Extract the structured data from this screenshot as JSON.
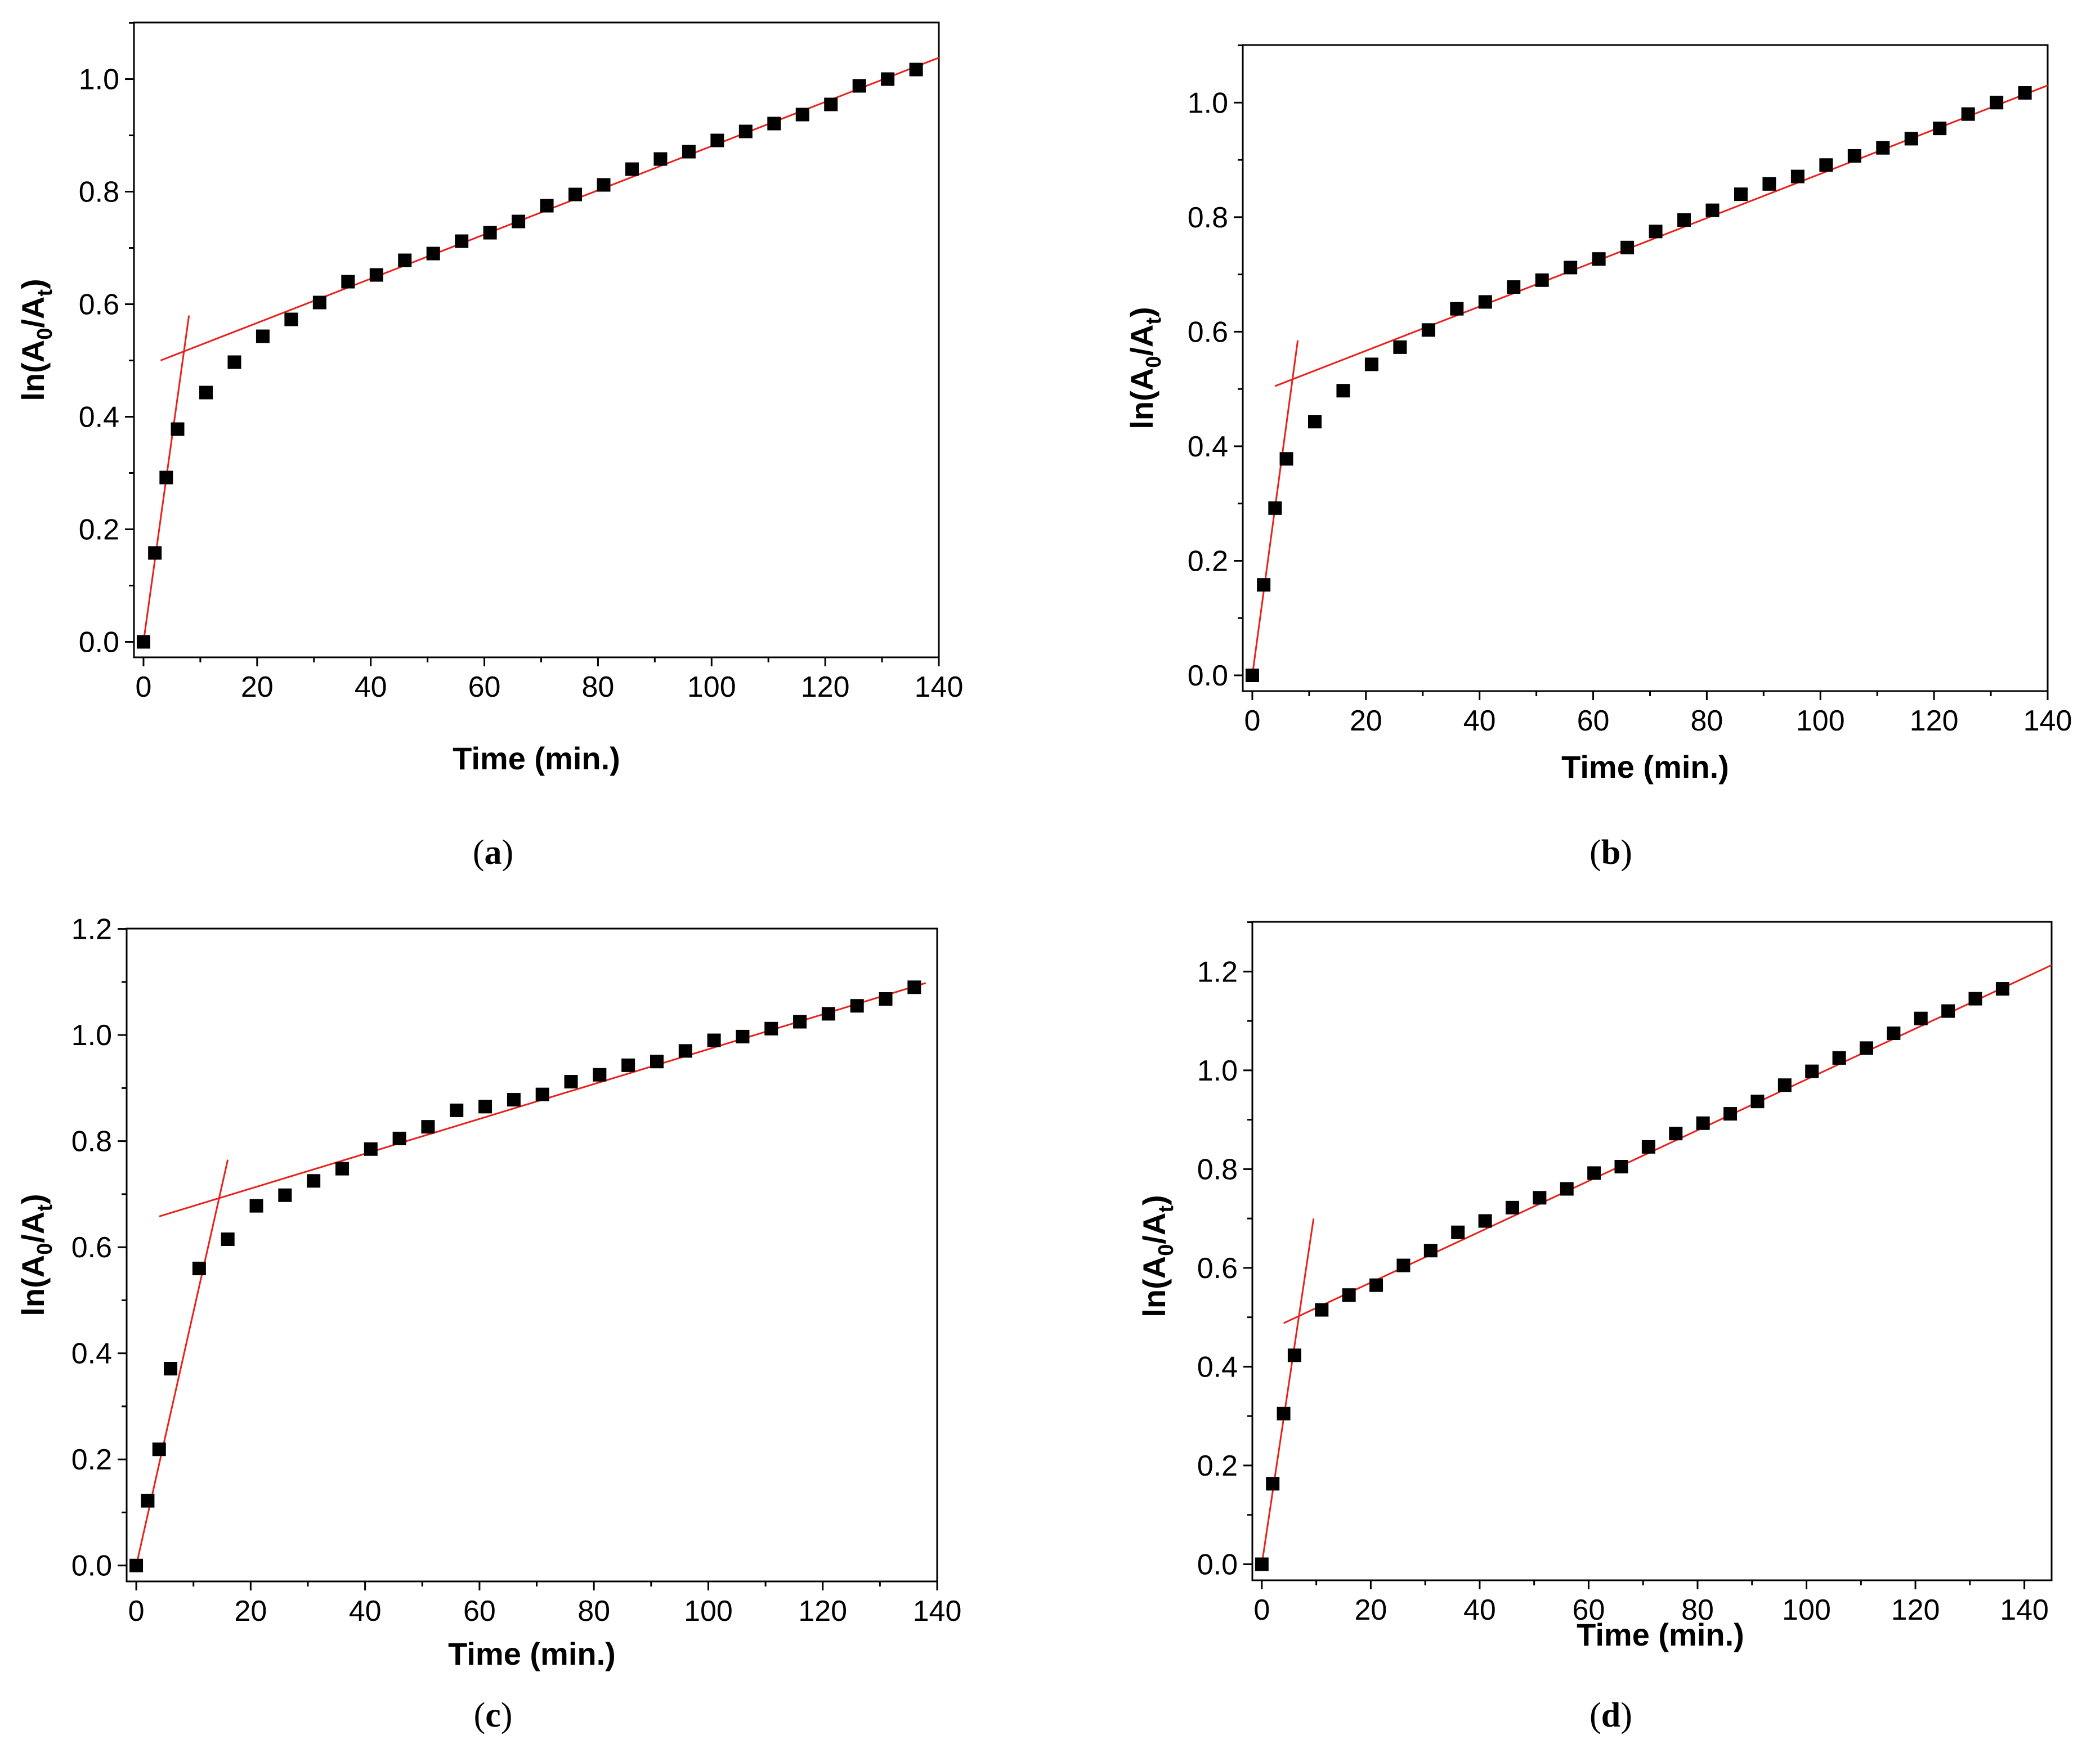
{
  "chart_data": [
    {
      "id": "a",
      "type": "scatter",
      "caption_letter": "a",
      "xlabel": "Time (min.)",
      "ylabel": {
        "prefix": "ln(A",
        "sub1": "0",
        "mid": "/A",
        "sub2": "t",
        "suffix": ")"
      },
      "xlim": [
        0,
        140
      ],
      "ylim": [
        0,
        1.1
      ],
      "xticks": [
        "0",
        "20",
        "40",
        "60",
        "80",
        "100",
        "120",
        "140"
      ],
      "yticks": [
        "0.0",
        "0.2",
        "0.4",
        "0.6",
        "0.8",
        "1.0"
      ],
      "series": [
        {
          "name": "data",
          "marker": "square",
          "x": [
            0,
            2,
            4,
            6,
            11,
            16,
            21,
            26,
            31,
            36,
            41,
            46,
            51,
            56,
            61,
            66,
            71,
            76,
            81,
            86,
            91,
            96,
            101,
            106,
            111,
            116,
            121,
            126,
            131,
            136
          ],
          "y": [
            0.0,
            0.158,
            0.292,
            0.378,
            0.443,
            0.497,
            0.543,
            0.573,
            0.603,
            0.64,
            0.652,
            0.678,
            0.69,
            0.712,
            0.727,
            0.747,
            0.775,
            0.795,
            0.812,
            0.84,
            0.858,
            0.871,
            0.891,
            0.907,
            0.921,
            0.937,
            0.955,
            0.988,
            1.0,
            1.017
          ]
        }
      ],
      "fit_lines": [
        {
          "x": [
            0,
            8
          ],
          "y": [
            0.0,
            0.58
          ]
        },
        {
          "x": [
            3,
            140
          ],
          "y": [
            0.5,
            1.038
          ]
        }
      ]
    },
    {
      "id": "b",
      "type": "scatter",
      "caption_letter": "b",
      "xlabel": "Time (min.)",
      "ylabel": {
        "prefix": "ln(A",
        "sub1": "0",
        "mid": "/A",
        "sub2": "t",
        "suffix": ")"
      },
      "xlim": [
        0,
        140
      ],
      "ylim": [
        0,
        1.1
      ],
      "xticks": [
        "0",
        "20",
        "40",
        "60",
        "80",
        "100",
        "120",
        "140"
      ],
      "yticks": [
        "0.0",
        "0.2",
        "0.4",
        "0.6",
        "0.8",
        "1.0"
      ],
      "series": [
        {
          "name": "data",
          "marker": "square",
          "x": [
            0,
            2,
            4,
            6,
            11,
            16,
            21,
            26,
            31,
            36,
            41,
            46,
            51,
            56,
            61,
            66,
            71,
            76,
            81,
            86,
            91,
            96,
            101,
            106,
            111,
            116,
            121,
            126,
            131,
            136
          ],
          "y": [
            0.0,
            0.158,
            0.292,
            0.378,
            0.443,
            0.497,
            0.543,
            0.573,
            0.603,
            0.64,
            0.652,
            0.678,
            0.69,
            0.712,
            0.727,
            0.747,
            0.775,
            0.795,
            0.812,
            0.84,
            0.858,
            0.871,
            0.891,
            0.907,
            0.921,
            0.937,
            0.955,
            0.98,
            1.0,
            1.017
          ]
        }
      ],
      "fit_lines": [
        {
          "x": [
            0,
            8
          ],
          "y": [
            0.0,
            0.585
          ]
        },
        {
          "x": [
            4,
            140
          ],
          "y": [
            0.505,
            1.03
          ]
        }
      ]
    },
    {
      "id": "c",
      "type": "scatter",
      "caption_letter": "c",
      "xlabel": "Time (min.)",
      "ylabel": {
        "prefix": "ln(A",
        "sub1": "0",
        "mid": "/A",
        "sub2": "t",
        "suffix": ")"
      },
      "xlim": [
        0,
        140
      ],
      "ylim": [
        0,
        1.2
      ],
      "xticks": [
        "0",
        "20",
        "40",
        "60",
        "80",
        "100",
        "120",
        "140"
      ],
      "yticks": [
        "0.0",
        "0.2",
        "0.4",
        "0.6",
        "0.8",
        "1.0",
        "1.2"
      ],
      "series": [
        {
          "name": "data",
          "marker": "square",
          "x": [
            0,
            2,
            4,
            6,
            11,
            16,
            21,
            26,
            31,
            36,
            41,
            46,
            51,
            56,
            61,
            66,
            71,
            76,
            81,
            86,
            91,
            96,
            101,
            106,
            111,
            116,
            121,
            126,
            131,
            136
          ],
          "y": [
            0.0,
            0.122,
            0.219,
            0.371,
            0.56,
            0.615,
            0.678,
            0.698,
            0.725,
            0.748,
            0.785,
            0.805,
            0.827,
            0.858,
            0.865,
            0.878,
            0.888,
            0.912,
            0.925,
            0.943,
            0.95,
            0.97,
            0.99,
            0.997,
            1.012,
            1.025,
            1.04,
            1.055,
            1.068,
            1.09
          ]
        }
      ],
      "fit_lines": [
        {
          "x": [
            0,
            16
          ],
          "y": [
            0.0,
            0.765
          ]
        },
        {
          "x": [
            4,
            138
          ],
          "y": [
            0.658,
            1.098
          ]
        }
      ]
    },
    {
      "id": "d",
      "type": "scatter",
      "caption_letter": "d",
      "xlabel": "Time (min.)",
      "ylabel": {
        "prefix": "ln(A",
        "sub1": "0",
        "mid": "/A",
        "sub2": "t",
        "suffix": ")"
      },
      "xlim": [
        0,
        145
      ],
      "ylim": [
        0,
        1.3
      ],
      "xticks": [
        "0",
        "20",
        "40",
        "60",
        "80",
        "100",
        "120",
        "140"
      ],
      "yticks": [
        "0.0",
        "0.2",
        "0.4",
        "0.6",
        "0.8",
        "1.0",
        "1.2"
      ],
      "series": [
        {
          "name": "data",
          "marker": "square",
          "x": [
            0,
            2,
            4,
            6,
            11,
            16,
            21,
            26,
            31,
            36,
            41,
            46,
            51,
            56,
            61,
            66,
            71,
            76,
            81,
            86,
            91,
            96,
            101,
            106,
            111,
            116,
            121,
            126,
            131,
            136
          ],
          "y": [
            0.0,
            0.163,
            0.305,
            0.423,
            0.515,
            0.545,
            0.565,
            0.605,
            0.635,
            0.672,
            0.695,
            0.722,
            0.742,
            0.76,
            0.792,
            0.805,
            0.845,
            0.872,
            0.893,
            0.912,
            0.937,
            0.97,
            0.998,
            1.025,
            1.045,
            1.075,
            1.105,
            1.12,
            1.145,
            1.165
          ]
        }
      ],
      "fit_lines": [
        {
          "x": [
            0,
            9.5
          ],
          "y": [
            0.0,
            0.7
          ]
        },
        {
          "x": [
            4,
            145
          ],
          "y": [
            0.488,
            1.213
          ]
        }
      ]
    }
  ]
}
